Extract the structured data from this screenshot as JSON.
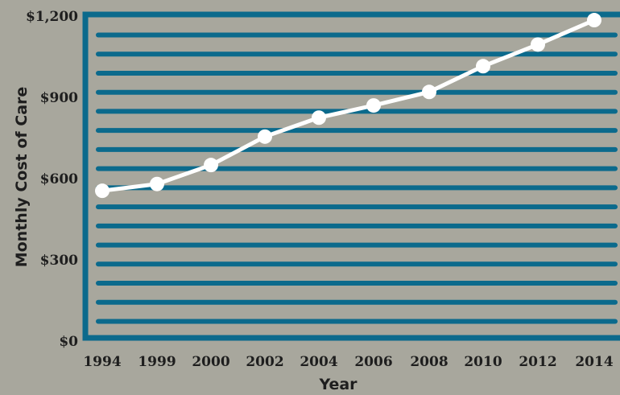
{
  "chart_data": {
    "type": "line",
    "title": "",
    "xlabel": "Year",
    "ylabel": "Monthly Cost of Care",
    "categories": [
      "1994",
      "1999",
      "2000",
      "2002",
      "2004",
      "2006",
      "2008",
      "2010",
      "2012",
      "2014"
    ],
    "series": [
      {
        "values": [
          555,
          580,
          650,
          755,
          825,
          870,
          920,
          1015,
          1095,
          1185
        ]
      }
    ],
    "ylim": [
      0,
      1200
    ],
    "y_ticks": [
      0,
      300,
      600,
      900,
      1200
    ],
    "y_tick_labels": [
      "$0",
      "$300",
      "$600",
      "$900",
      "$1,200"
    ],
    "grid": true,
    "colors": {
      "background": "#a8a79d",
      "plot_frame": "#0b6a8c",
      "stripes": "#0b6a8c",
      "line": "#ffffff",
      "markers": "#ffffff"
    }
  }
}
